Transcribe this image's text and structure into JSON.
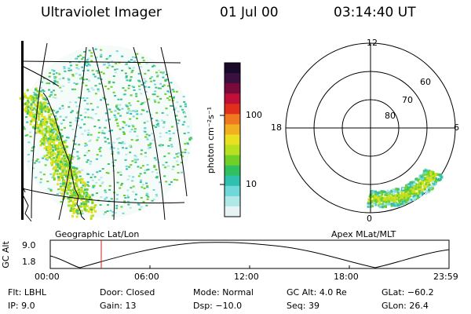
{
  "header": {
    "instrument": "Ultraviolet Imager",
    "date": "01 Jul 00",
    "time": "03:14:40 UT"
  },
  "colorbar": {
    "label": "photon cm⁻²s⁻¹",
    "tick_labels": [
      "100",
      "10"
    ],
    "colors": [
      "#1a0a2a",
      "#3a1040",
      "#7a0a3a",
      "#c0103a",
      "#e0301c",
      "#f07820",
      "#f0b020",
      "#e8e020",
      "#b8e020",
      "#70d028",
      "#30c060",
      "#30c0b0",
      "#70d8d8",
      "#b0e8e8",
      "#e8f4f4"
    ]
  },
  "panels": {
    "left_caption": "Geographic Lat/Lon",
    "right_caption": "Apex MLat/MLT",
    "polar": {
      "mlt_labels": {
        "top": "12",
        "left": "18",
        "right": "6",
        "bottom": "0"
      },
      "lat_labels": [
        "60",
        "70",
        "80"
      ]
    }
  },
  "altitude_plot": {
    "axis_label": "GC Alt",
    "y_ticks": [
      "9.0",
      "1.8"
    ],
    "x_ticks": [
      "00:00",
      "06:00",
      "12:00",
      "18:00",
      "23:59"
    ],
    "marker_time": "03:14:40"
  },
  "status": {
    "flt_label": "Flt:",
    "flt_value": "LBHL",
    "ip_label": "IP:",
    "ip_value": "9.0",
    "door_label": "Door:",
    "door_value": "Closed",
    "gain_label": "Gain:",
    "gain_value": "13",
    "mode_label": "Mode:",
    "mode_value": "Normal",
    "dsp_label": "Dsp:",
    "dsp_value": "−10.0",
    "gcalt_label": "GC Alt:",
    "gcalt_value": "4.0 Re",
    "seq_label": "Seq:",
    "seq_value": "39",
    "glat_label": "GLat:",
    "glat_value": "−60.2",
    "glon_label": "GLon:",
    "glon_value": "26.4"
  },
  "colors": {
    "marker": "#d02020",
    "aurora_core": "#d8e020",
    "aurora_mid": "#70d028",
    "background_noise": "#30c0b0"
  }
}
